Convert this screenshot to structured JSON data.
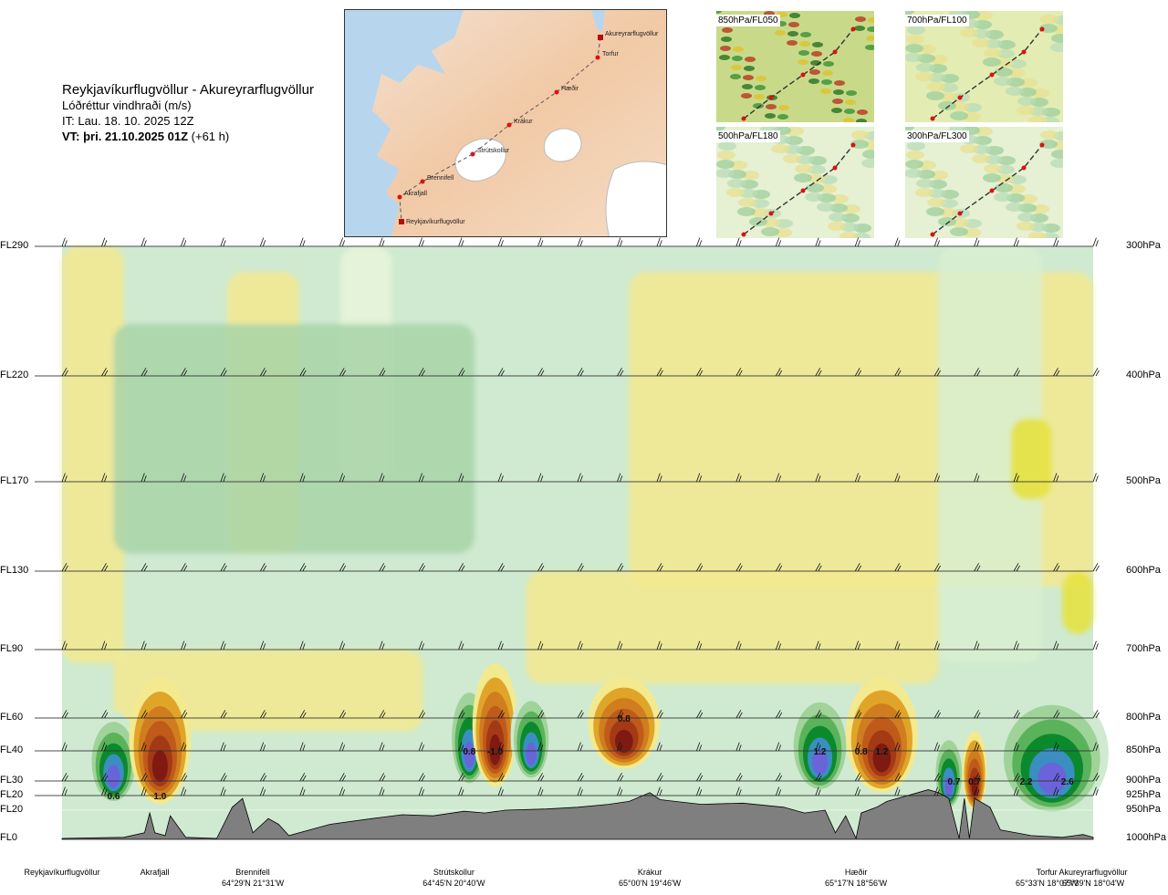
{
  "header": {
    "route": "Reykjavíkurflugvöllur - Akureyrarflugvöllur",
    "subtitle": "Lóðréttur vindhraði (m/s)",
    "issue_time": "IT: Lau. 18. 10. 2025 12Z",
    "valid_time_bold": "VT: þri. 21.10.2025 01Z",
    "valid_offset": "(+61 h)"
  },
  "route_map": {
    "points": [
      {
        "name": "Akureyrarflugvöllur"
      },
      {
        "name": "Torfur"
      },
      {
        "name": "Hæðir"
      },
      {
        "name": "Krákur"
      },
      {
        "name": "Strútskollur"
      },
      {
        "name": "Brennifell"
      },
      {
        "name": "Akrafjall"
      },
      {
        "name": "Reykjavíkurflugvöllur"
      }
    ]
  },
  "thumbnails": [
    {
      "label": "850hPa/FL050",
      "color": "#c9d98a"
    },
    {
      "label": "700hPa/FL100",
      "color": "#e3ecb2"
    },
    {
      "label": "500hPa/FL180",
      "color": "#e6f0d2"
    },
    {
      "label": "300hPa/FL300",
      "color": "#e6f0d2"
    }
  ],
  "chart_data": {
    "type": "heatmap",
    "variable": "vertical wind speed (m/s)",
    "y_levels_left": [
      "FL290",
      "FL220",
      "FL170",
      "FL130",
      "FL90",
      "FL60",
      "FL40",
      "FL30",
      "FL20",
      "FL20",
      "FL0"
    ],
    "y_levels_right": [
      "300hPa",
      "400hPa",
      "500hPa",
      "600hPa",
      "700hPa",
      "800hPa",
      "850hPa",
      "900hPa",
      "925hPa",
      "950hPa",
      "1000hPa"
    ],
    "pressure_levels": [
      300,
      400,
      500,
      600,
      700,
      800,
      850,
      900,
      925,
      950,
      1000
    ],
    "x_stations": [
      {
        "name": "Reykjavíkurflugvöllur",
        "coord": "",
        "pos": 0.0
      },
      {
        "name": "Akrafjall",
        "coord": "",
        "pos": 0.09
      },
      {
        "name": "Brennifell",
        "coord": "64°29'N 21°31'W",
        "pos": 0.185
      },
      {
        "name": "Strútskollur",
        "coord": "64°45'N 20°40'W",
        "pos": 0.38
      },
      {
        "name": "Krákur",
        "coord": "65°00'N 19°46'W",
        "pos": 0.57
      },
      {
        "name": "Hæðir",
        "coord": "65°17'N 18°56'W",
        "pos": 0.77
      },
      {
        "name": "Torfur",
        "coord": "65°33'N 18°07'W",
        "pos": 0.955
      },
      {
        "name": "Akureyrarflugvöllur",
        "coord": "65°39'N 18°04'W",
        "pos": 1.0
      }
    ],
    "value_labels": [
      {
        "text": "0.6",
        "pos": 0.05,
        "level": 925
      },
      {
        "text": "1.0",
        "pos": 0.095,
        "level": 925
      },
      {
        "text": "0.8",
        "pos": 0.395,
        "level": 850
      },
      {
        "text": "-1.0",
        "pos": 0.42,
        "level": 850
      },
      {
        "text": "0.8",
        "pos": 0.545,
        "level": 800
      },
      {
        "text": "1.2",
        "pos": 0.735,
        "level": 850
      },
      {
        "text": "0.8",
        "pos": 0.775,
        "level": 850
      },
      {
        "text": "1.2",
        "pos": 0.795,
        "level": 850
      },
      {
        "text": "0.7",
        "pos": 0.865,
        "level": 900
      },
      {
        "text": "0.7",
        "pos": 0.885,
        "level": 900
      },
      {
        "text": "2.2",
        "pos": 0.935,
        "level": 900
      },
      {
        "text": "2.6",
        "pos": 0.975,
        "level": 900
      }
    ],
    "palette": {
      "sink_strong": "#7e1a12",
      "sink_med": "#c05a1a",
      "sink_light": "#e0a528",
      "sink_faint": "#f3e98f",
      "rise_faint": "#cfead0",
      "rise_med": "#5ab35a",
      "rise_strong": "#0b8a2d",
      "rise_max": "#6a63d9",
      "terrain": "#7f7f7f"
    }
  }
}
